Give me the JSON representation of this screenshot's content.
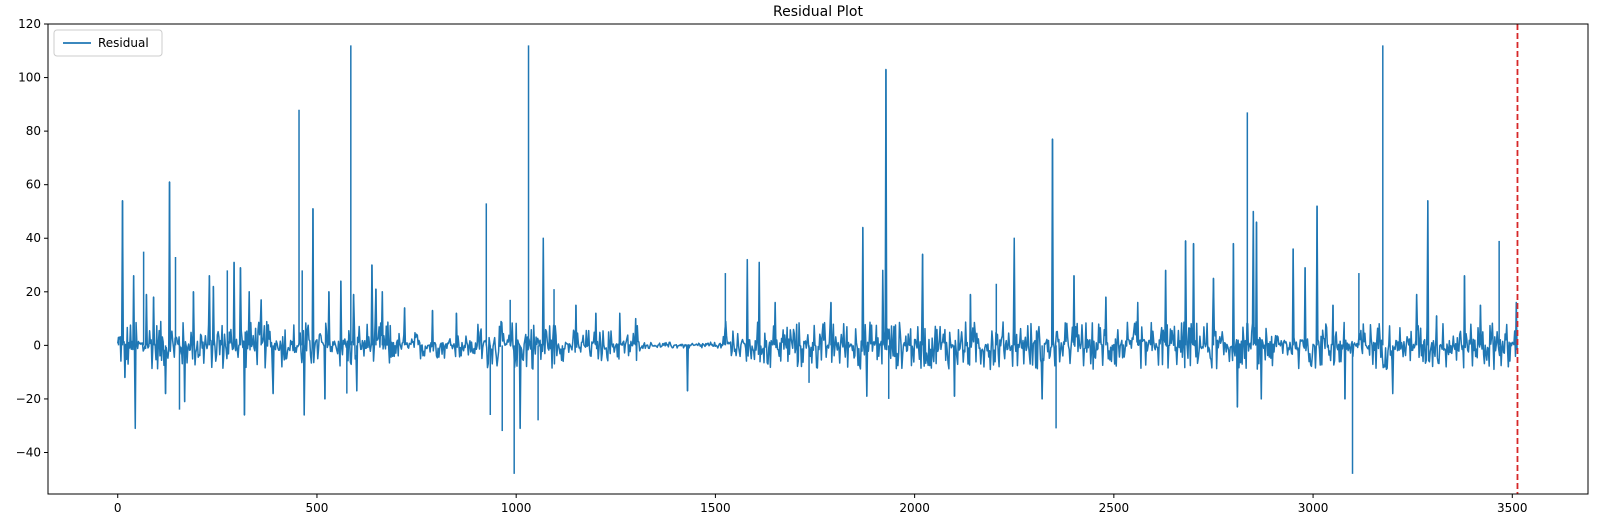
{
  "chart_data": {
    "type": "line",
    "title": "Residual Plot",
    "xlabel": "",
    "ylabel": "",
    "xlim": [
      -175,
      3690
    ],
    "ylim": [
      -55.5,
      120
    ],
    "xticks": [
      0,
      500,
      1000,
      1500,
      2000,
      2500,
      3000,
      3500
    ],
    "yticks": [
      -40,
      -20,
      0,
      20,
      40,
      60,
      80,
      100,
      120
    ],
    "xtick_labels": [
      "0",
      "500",
      "1000",
      "1500",
      "2000",
      "2500",
      "3000",
      "3500"
    ],
    "ytick_labels": [
      "−40",
      "−20",
      "0",
      "20",
      "40",
      "60",
      "80",
      "100",
      "120"
    ],
    "grid": false,
    "legend": {
      "position": "top-left",
      "entries": [
        "Residual"
      ]
    },
    "series": [
      {
        "name": "Residual",
        "color": "#1f77b4",
        "x_start": 0,
        "x_end": 3513,
        "n_points": 3514,
        "notable_points": [
          {
            "x": 2,
            "y": 3
          },
          {
            "x": 12,
            "y": 54
          },
          {
            "x": 18,
            "y": -12
          },
          {
            "x": 40,
            "y": 26
          },
          {
            "x": 44,
            "y": -31
          },
          {
            "x": 65,
            "y": 35
          },
          {
            "x": 72,
            "y": 19
          },
          {
            "x": 90,
            "y": 18
          },
          {
            "x": 120,
            "y": -18
          },
          {
            "x": 130,
            "y": 61
          },
          {
            "x": 145,
            "y": 33
          },
          {
            "x": 155,
            "y": -24
          },
          {
            "x": 168,
            "y": -21
          },
          {
            "x": 190,
            "y": 20
          },
          {
            "x": 230,
            "y": 26
          },
          {
            "x": 240,
            "y": 22
          },
          {
            "x": 275,
            "y": 28
          },
          {
            "x": 292,
            "y": 31
          },
          {
            "x": 308,
            "y": 29
          },
          {
            "x": 318,
            "y": -26
          },
          {
            "x": 330,
            "y": 20
          },
          {
            "x": 360,
            "y": 17
          },
          {
            "x": 390,
            "y": -18
          },
          {
            "x": 455,
            "y": 88
          },
          {
            "x": 463,
            "y": 28
          },
          {
            "x": 468,
            "y": -26
          },
          {
            "x": 490,
            "y": 51
          },
          {
            "x": 520,
            "y": -20
          },
          {
            "x": 530,
            "y": 20
          },
          {
            "x": 560,
            "y": 24
          },
          {
            "x": 575,
            "y": -18
          },
          {
            "x": 585,
            "y": 112
          },
          {
            "x": 592,
            "y": 19
          },
          {
            "x": 600,
            "y": -17
          },
          {
            "x": 638,
            "y": 30
          },
          {
            "x": 648,
            "y": 21
          },
          {
            "x": 664,
            "y": 20
          },
          {
            "x": 720,
            "y": 14
          },
          {
            "x": 790,
            "y": 13
          },
          {
            "x": 850,
            "y": 12
          },
          {
            "x": 925,
            "y": 53
          },
          {
            "x": 935,
            "y": -26
          },
          {
            "x": 965,
            "y": -32
          },
          {
            "x": 985,
            "y": 17
          },
          {
            "x": 995,
            "y": -48
          },
          {
            "x": 1010,
            "y": -31
          },
          {
            "x": 1031,
            "y": 112
          },
          {
            "x": 1055,
            "y": -28
          },
          {
            "x": 1068,
            "y": 40
          },
          {
            "x": 1095,
            "y": 21
          },
          {
            "x": 1150,
            "y": 15
          },
          {
            "x": 1200,
            "y": 12
          },
          {
            "x": 1260,
            "y": 12
          },
          {
            "x": 1300,
            "y": 10
          },
          {
            "x": 1430,
            "y": -17
          },
          {
            "x": 1525,
            "y": 27
          },
          {
            "x": 1580,
            "y": 32
          },
          {
            "x": 1610,
            "y": 31
          },
          {
            "x": 1650,
            "y": 16
          },
          {
            "x": 1735,
            "y": -14
          },
          {
            "x": 1790,
            "y": 16
          },
          {
            "x": 1870,
            "y": 44
          },
          {
            "x": 1880,
            "y": -19
          },
          {
            "x": 1920,
            "y": 28
          },
          {
            "x": 1928,
            "y": 103
          },
          {
            "x": 1935,
            "y": -20
          },
          {
            "x": 2020,
            "y": 34
          },
          {
            "x": 2100,
            "y": -19
          },
          {
            "x": 2140,
            "y": 19
          },
          {
            "x": 2205,
            "y": 23
          },
          {
            "x": 2250,
            "y": 40
          },
          {
            "x": 2320,
            "y": -20
          },
          {
            "x": 2346,
            "y": 77
          },
          {
            "x": 2355,
            "y": -31
          },
          {
            "x": 2400,
            "y": 26
          },
          {
            "x": 2480,
            "y": 18
          },
          {
            "x": 2560,
            "y": 16
          },
          {
            "x": 2630,
            "y": 28
          },
          {
            "x": 2680,
            "y": 39
          },
          {
            "x": 2700,
            "y": 38
          },
          {
            "x": 2750,
            "y": 25
          },
          {
            "x": 2800,
            "y": 38
          },
          {
            "x": 2810,
            "y": -23
          },
          {
            "x": 2835,
            "y": 87
          },
          {
            "x": 2850,
            "y": 50
          },
          {
            "x": 2858,
            "y": 46
          },
          {
            "x": 2870,
            "y": -20
          },
          {
            "x": 2950,
            "y": 36
          },
          {
            "x": 2980,
            "y": 29
          },
          {
            "x": 3010,
            "y": 52
          },
          {
            "x": 3050,
            "y": 15
          },
          {
            "x": 3080,
            "y": -20
          },
          {
            "x": 3099,
            "y": -48
          },
          {
            "x": 3115,
            "y": 27
          },
          {
            "x": 3160,
            "y": 2
          },
          {
            "x": 3175,
            "y": 112
          },
          {
            "x": 3200,
            "y": -18
          },
          {
            "x": 3260,
            "y": 19
          },
          {
            "x": 3288,
            "y": 54
          },
          {
            "x": 3310,
            "y": 11
          },
          {
            "x": 3380,
            "y": 26
          },
          {
            "x": 3420,
            "y": 15
          },
          {
            "x": 3467,
            "y": 39
          },
          {
            "x": 3490,
            "y": -8
          },
          {
            "x": 3510,
            "y": 16
          }
        ]
      }
    ],
    "annotations": [
      {
        "type": "vline",
        "x": 3513,
        "color": "#d62728",
        "style": "dashed"
      }
    ]
  }
}
